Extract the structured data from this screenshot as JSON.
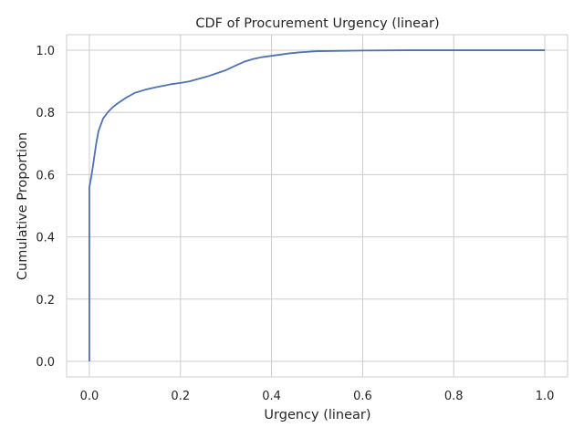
{
  "chart_data": {
    "type": "line",
    "title": "CDF of Procurement Urgency (linear)",
    "xlabel": "Urgency (linear)",
    "ylabel": "Cumulative Proportion",
    "xlim": [
      -0.05,
      1.05
    ],
    "ylim": [
      -0.05,
      1.05
    ],
    "x_ticks": [
      "0.0",
      "0.2",
      "0.4",
      "0.6",
      "0.8",
      "1.0"
    ],
    "y_ticks": [
      "0.0",
      "0.2",
      "0.4",
      "0.6",
      "0.8",
      "1.0"
    ],
    "grid": true,
    "series_color": "#4c72b0",
    "series": [
      {
        "x": [
          0.0,
          0.0,
          0.0,
          0.005,
          0.01,
          0.015,
          0.02,
          0.025,
          0.03,
          0.035,
          0.04,
          0.05,
          0.06,
          0.07,
          0.08,
          0.09,
          0.1,
          0.12,
          0.14,
          0.16,
          0.18,
          0.2,
          0.22,
          0.24,
          0.26,
          0.28,
          0.3,
          0.32,
          0.34,
          0.36,
          0.38,
          0.4,
          0.42,
          0.44,
          0.46,
          0.48,
          0.5,
          0.55,
          0.6,
          0.7,
          0.8,
          0.9,
          1.0
        ],
        "y": [
          0.0,
          0.3,
          0.56,
          0.6,
          0.65,
          0.7,
          0.74,
          0.76,
          0.78,
          0.79,
          0.8,
          0.815,
          0.827,
          0.837,
          0.847,
          0.855,
          0.863,
          0.872,
          0.879,
          0.885,
          0.891,
          0.895,
          0.9,
          0.908,
          0.916,
          0.926,
          0.936,
          0.95,
          0.963,
          0.972,
          0.978,
          0.982,
          0.986,
          0.99,
          0.993,
          0.995,
          0.997,
          0.998,
          0.999,
          1.0,
          1.0,
          1.0,
          1.0
        ]
      }
    ]
  }
}
